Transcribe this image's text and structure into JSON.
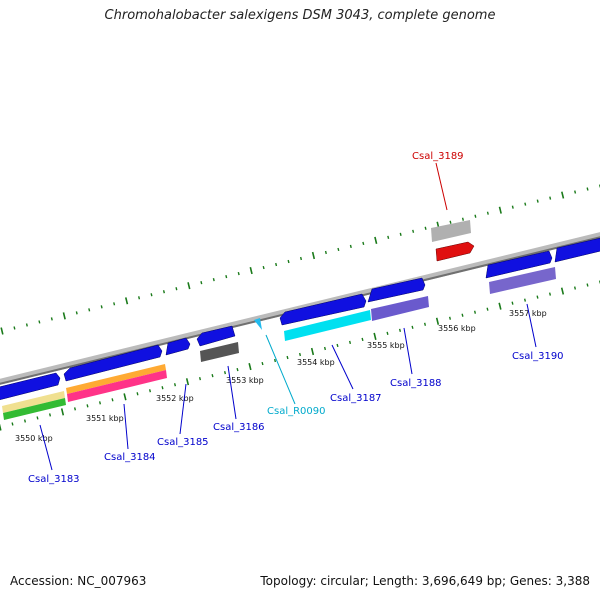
{
  "header": {
    "title": "Chromohalobacter salexigens DSM 3043, complete genome"
  },
  "footer": {
    "accession": "Accession: NC_007963",
    "summary": "Topology: circular; Length: 3,696,649 bp; Genes: 3,388"
  },
  "colors": {
    "backbone": "#8a8a8a",
    "tick": "#1a7a1a",
    "gene_blue": "#1010e0",
    "rna": "#00c8d8",
    "selected_gene": "#e01010",
    "label_blue": "#0000cc",
    "label_red": "#cc0000",
    "label_cyan": "#00aacc"
  },
  "scale_labels": [
    "3550 kbp",
    "3551 kbp",
    "3552 kbp",
    "3553 kbp",
    "3554 kbp",
    "3555 kbp",
    "3556 kbp",
    "3557 kbp"
  ],
  "gene_labels": [
    {
      "id": "Csal_3183",
      "color": "blue"
    },
    {
      "id": "Csal_3184",
      "color": "blue"
    },
    {
      "id": "Csal_3185",
      "color": "blue"
    },
    {
      "id": "Csal_3186",
      "color": "blue"
    },
    {
      "id": "Csal_R0090",
      "color": "cyan"
    },
    {
      "id": "Csal_3187",
      "color": "blue"
    },
    {
      "id": "Csal_3188",
      "color": "blue"
    },
    {
      "id": "Csal_3189",
      "color": "red"
    },
    {
      "id": "Csal_3190",
      "color": "blue"
    }
  ]
}
